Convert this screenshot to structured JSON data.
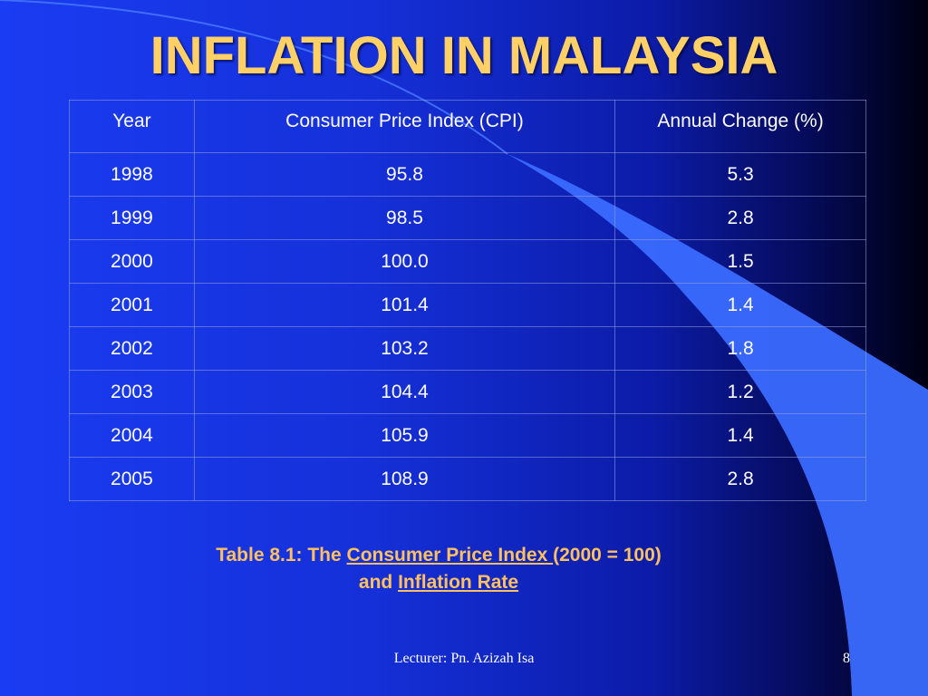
{
  "slide": {
    "title": "INFLATION IN MALAYSIA",
    "colors": {
      "title": "#ffd066",
      "caption": "#ffc060",
      "text": "#ffffff"
    }
  },
  "table": {
    "headers": [
      "Year",
      "Consumer Price Index (CPI)",
      "Annual Change (%)"
    ],
    "rows": [
      [
        "1998",
        "95.8",
        "5.3"
      ],
      [
        "1999",
        "98.5",
        "2.8"
      ],
      [
        "2000",
        "100.0",
        "1.5"
      ],
      [
        "2001",
        "101.4",
        "1.4"
      ],
      [
        "2002",
        "103.2",
        "1.8"
      ],
      [
        "2003",
        "104.4",
        "1.2"
      ],
      [
        "2004",
        "105.9",
        "1.4"
      ],
      [
        "2005",
        "108.9",
        "2.8"
      ]
    ]
  },
  "caption": {
    "prefix": "Table 8.1: The ",
    "link1": "Consumer Price Index ",
    "middle": " (2000 = 100)",
    "line2_prefix": "and ",
    "link2": "Inflation Rate"
  },
  "footer": {
    "lecturer": "Lecturer: Pn. Azizah Isa",
    "page": "8"
  }
}
